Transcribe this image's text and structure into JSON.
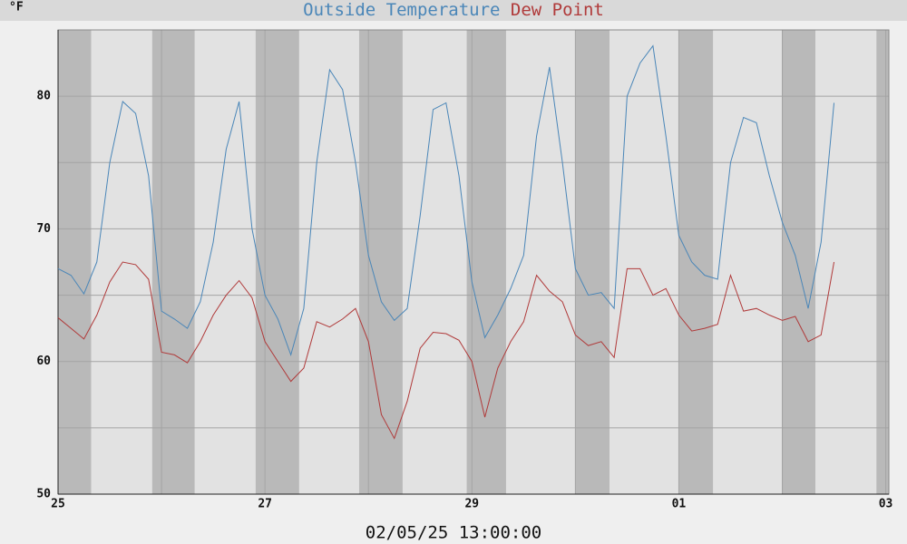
{
  "chart_data": {
    "type": "line",
    "y_label": "°F",
    "x_label": "02/05/25 13:00:00",
    "x": [
      0,
      0.125,
      0.25,
      0.375,
      0.5,
      0.625,
      0.75,
      0.875,
      1,
      1.125,
      1.25,
      1.375,
      1.5,
      1.625,
      1.75,
      1.875,
      2,
      2.125,
      2.25,
      2.375,
      2.5,
      2.625,
      2.75,
      2.875,
      3,
      3.125,
      3.25,
      3.375,
      3.5,
      3.625,
      3.75,
      3.875,
      4,
      4.125,
      4.25,
      4.375,
      4.5,
      4.625,
      4.75,
      4.875,
      5,
      5.125,
      5.25,
      5.375,
      5.5,
      5.625,
      5.75,
      5.875,
      6,
      6.125,
      6.25,
      6.375,
      6.5,
      6.625,
      6.75,
      6.875,
      7,
      7.125,
      7.25,
      7.375,
      7.5
    ],
    "series": [
      {
        "name": "Outside Temperature",
        "color": "#4a86b8",
        "values": [
          67,
          66.5,
          65.1,
          67.5,
          75,
          79.6,
          78.7,
          74,
          63.8,
          63.2,
          62.5,
          64.5,
          69,
          76,
          79.6,
          70,
          65,
          63.2,
          60.5,
          64,
          75,
          82,
          80.5,
          75,
          68,
          64.5,
          63.1,
          64,
          71,
          79,
          79.5,
          74,
          66,
          61.8,
          63.5,
          65.5,
          68,
          77,
          82.2,
          75,
          67,
          65,
          65.2,
          64,
          80,
          82.5,
          83.8,
          77,
          69.5,
          67.5,
          66.5,
          66.2,
          75,
          78.4,
          78,
          74,
          70.5,
          68,
          64,
          69,
          79.5
        ]
      },
      {
        "name": "Dew Point",
        "color": "#b03a3a",
        "values": [
          63.3,
          62.5,
          61.7,
          63.5,
          66,
          67.5,
          67.3,
          66.2,
          60.7,
          60.5,
          59.9,
          61.5,
          63.5,
          65,
          66.1,
          64.8,
          61.5,
          60,
          58.5,
          59.5,
          63,
          62.6,
          63.2,
          64,
          61.5,
          56,
          54.2,
          57,
          61,
          62.2,
          62.1,
          61.6,
          60,
          55.8,
          59.5,
          61.5,
          63,
          66.5,
          65.3,
          64.5,
          62,
          61.2,
          61.5,
          60.3,
          67,
          67,
          65,
          65.5,
          63.5,
          62.3,
          62.5,
          62.8,
          66.5,
          63.8,
          64,
          63.5,
          63.1,
          63.4,
          61.5,
          62,
          67.5
        ]
      }
    ],
    "xlim": [
      0,
      8.03
    ],
    "xticks": [
      {
        "value": 0,
        "label": "25"
      },
      {
        "value": 2,
        "label": "27"
      },
      {
        "value": 4,
        "label": "29"
      },
      {
        "value": 6,
        "label": "01"
      },
      {
        "value": 8,
        "label": "03"
      }
    ],
    "x_minor_ticks": [
      1,
      3,
      5,
      7
    ],
    "ylim": [
      50,
      85
    ],
    "yticks": [
      50,
      60,
      70,
      80
    ],
    "y_minor_ticks": [
      55,
      65,
      75
    ],
    "grid": true,
    "night_shading": [
      [
        0,
        0.32
      ],
      [
        0.91,
        1.32
      ],
      [
        1.91,
        2.33
      ],
      [
        2.91,
        3.33
      ],
      [
        3.95,
        4.33
      ],
      [
        5.0,
        5.33
      ],
      [
        6.0,
        6.33
      ],
      [
        7.0,
        7.32
      ],
      [
        7.91,
        8.03
      ]
    ]
  }
}
